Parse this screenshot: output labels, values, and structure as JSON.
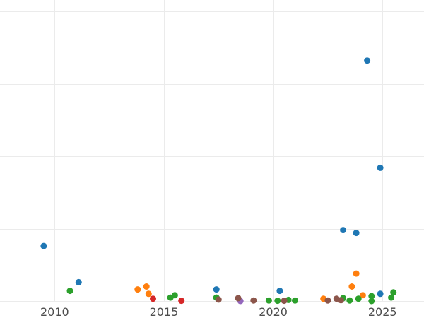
{
  "chart_data": {
    "type": "scatter",
    "title": "",
    "xlabel": "",
    "ylabel": "",
    "xlim": [
      2007.5,
      2026.9
    ],
    "ylim": [
      0,
      10
    ],
    "x_ticks": [
      2010,
      2015,
      2020,
      2025
    ],
    "y_gridlines": [
      0,
      2.5,
      5,
      7.5,
      10
    ],
    "x_gridlines": [
      2010,
      2015,
      2020,
      2025
    ],
    "grid": true,
    "legend": "none",
    "series": [
      {
        "color": "#1f77b4",
        "points": [
          {
            "x": 2009.5,
            "y": 1.9
          },
          {
            "x": 2011.1,
            "y": 0.65
          },
          {
            "x": 2017.4,
            "y": 0.4
          },
          {
            "x": 2020.3,
            "y": 0.35
          },
          {
            "x": 2023.2,
            "y": 2.45
          },
          {
            "x": 2023.8,
            "y": 2.35
          },
          {
            "x": 2024.3,
            "y": 8.3
          },
          {
            "x": 2024.9,
            "y": 4.6
          },
          {
            "x": 2024.9,
            "y": 0.25
          }
        ]
      },
      {
        "color": "#ff7f0e",
        "points": [
          {
            "x": 2013.8,
            "y": 0.4
          },
          {
            "x": 2014.2,
            "y": 0.5
          },
          {
            "x": 2014.3,
            "y": 0.25
          },
          {
            "x": 2022.3,
            "y": 0.08
          },
          {
            "x": 2023.6,
            "y": 0.5
          },
          {
            "x": 2023.8,
            "y": 0.95
          },
          {
            "x": 2024.1,
            "y": 0.2
          }
        ]
      },
      {
        "color": "#2ca02c",
        "points": [
          {
            "x": 2010.7,
            "y": 0.35
          },
          {
            "x": 2015.3,
            "y": 0.12
          },
          {
            "x": 2015.5,
            "y": 0.2
          },
          {
            "x": 2017.4,
            "y": 0.12
          },
          {
            "x": 2019.8,
            "y": 0.02
          },
          {
            "x": 2020.2,
            "y": 0.01
          },
          {
            "x": 2020.7,
            "y": 0.04
          },
          {
            "x": 2021.0,
            "y": 0.02
          },
          {
            "x": 2023.2,
            "y": 0.1
          },
          {
            "x": 2023.5,
            "y": 0.02
          },
          {
            "x": 2023.9,
            "y": 0.08
          },
          {
            "x": 2024.5,
            "y": 0.17
          },
          {
            "x": 2024.5,
            "y": 0.0
          },
          {
            "x": 2025.4,
            "y": 0.12
          },
          {
            "x": 2025.5,
            "y": 0.3
          }
        ]
      },
      {
        "color": "#d62728",
        "points": [
          {
            "x": 2014.5,
            "y": 0.08
          },
          {
            "x": 2015.8,
            "y": 0.01
          }
        ]
      },
      {
        "color": "#9467bd",
        "points": [
          {
            "x": 2018.5,
            "y": 0.0
          }
        ]
      },
      {
        "color": "#8c564b",
        "points": [
          {
            "x": 2017.5,
            "y": 0.05
          },
          {
            "x": 2018.4,
            "y": 0.1
          },
          {
            "x": 2019.1,
            "y": 0.02
          },
          {
            "x": 2020.5,
            "y": 0.01
          },
          {
            "x": 2022.5,
            "y": 0.02
          },
          {
            "x": 2022.9,
            "y": 0.08
          },
          {
            "x": 2023.1,
            "y": 0.03
          }
        ]
      }
    ]
  }
}
